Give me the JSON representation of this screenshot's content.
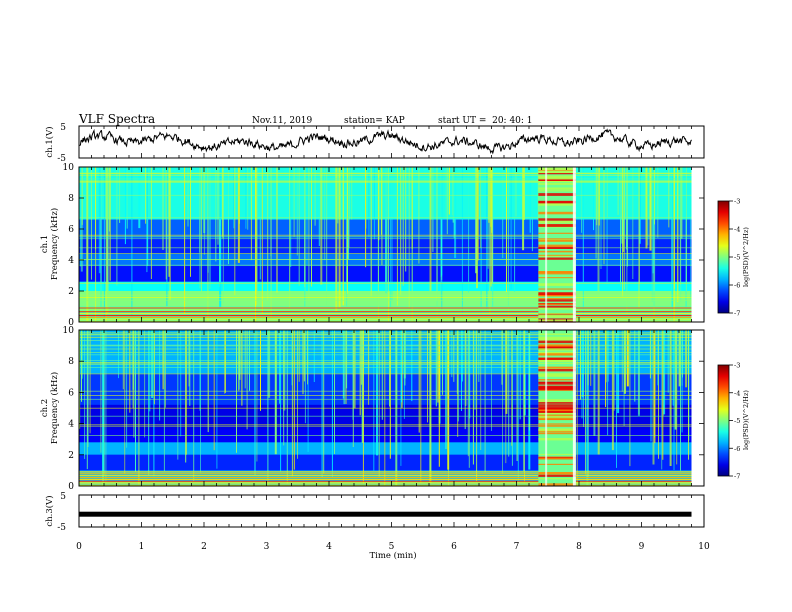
{
  "header": {
    "title": "VLF Spectra",
    "date": "Nov.11, 2019",
    "station": "station= KAP",
    "start": "start UT =  20: 40: 1"
  },
  "chart_data": [
    {
      "type": "line",
      "name": "ch1-waveform",
      "ylabel": "ch.1(V)",
      "ylim": [
        -5,
        5
      ],
      "yticks": [
        "5",
        "-5"
      ],
      "xlim": [
        0,
        10
      ]
    },
    {
      "type": "heatmap",
      "name": "ch1-spectrogram",
      "ylabel": "ch.1\nFrequency (kHz)",
      "ylabel_lines": [
        "ch.1",
        "Frequency (kHz)"
      ],
      "ylim": [
        0,
        10
      ],
      "yticks": [
        "0",
        "2",
        "4",
        "6",
        "8",
        "10"
      ],
      "xlim": [
        0,
        10
      ],
      "data_extent_min": 9.8,
      "burst_interval_min": [
        7.35,
        7.95
      ],
      "colorbar": {
        "label": "log(PSD)(V^2/Hz)",
        "range": [
          -7,
          -3
        ],
        "ticks": [
          "-3",
          "-4",
          "-5",
          "-6",
          "-7"
        ]
      }
    },
    {
      "type": "heatmap",
      "name": "ch2-spectrogram",
      "ylabel": "ch.2\nFrequency (kHz)",
      "ylabel_lines": [
        "ch.2",
        "Frequency (kHz)"
      ],
      "ylim": [
        0,
        10
      ],
      "yticks": [
        "0",
        "2",
        "4",
        "6",
        "8",
        "10"
      ],
      "xlim": [
        0,
        10
      ],
      "data_extent_min": 9.8,
      "burst_interval_min": [
        7.35,
        7.95
      ],
      "colorbar": {
        "label": "log(PSD)(V^2/Hz)",
        "range": [
          -7,
          -3
        ],
        "ticks": [
          "-3",
          "-4",
          "-5",
          "-6",
          "-7"
        ]
      }
    },
    {
      "type": "line",
      "name": "ch3-waveform",
      "ylabel": "ch.3(V)",
      "ylim": [
        -5,
        5
      ],
      "yticks": [
        "5",
        "-5"
      ],
      "xlim": [
        0,
        10
      ],
      "value": -1,
      "xlabel": "Time (min)",
      "xticks": [
        "0",
        "1",
        "2",
        "3",
        "4",
        "5",
        "6",
        "7",
        "8",
        "9",
        "10"
      ]
    }
  ]
}
